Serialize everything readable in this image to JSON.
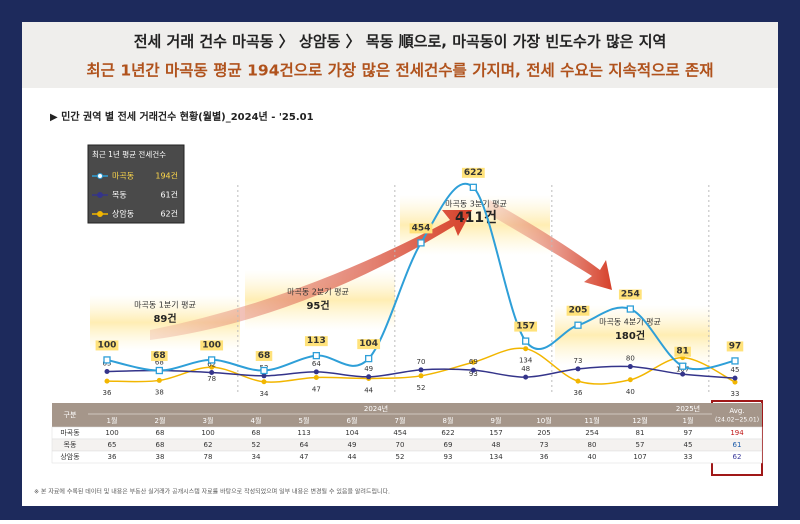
{
  "header": {
    "title": "전세 거래 건수 마곡동 〉 상암동 〉 목동 順으로, 마곡동이 가장 빈도수가 많은 지역",
    "subtitle": "최근 1년간 마곡동 평균 194건으로 가장 많은 전세건수를 가지며, 전세 수요는 지속적으로 존재"
  },
  "chart_data": {
    "type": "line",
    "title": "▶ 민간 권역 별 전세 거래건수 현황(월별)_2024년 - '25.01",
    "legend_title": "최근 1년 평균 전세건수",
    "years": [
      "2024년",
      "2025년"
    ],
    "categories": [
      "1월",
      "2월",
      "3월",
      "4월",
      "5월",
      "6월",
      "7월",
      "8월",
      "9월",
      "10월",
      "11월",
      "12월",
      "1월"
    ],
    "ylim": [
      0,
      750
    ],
    "series": [
      {
        "name": "마곡동",
        "color": "#2e9fd8",
        "values": [
          100,
          68,
          100,
          68,
          113,
          104,
          454,
          622,
          157,
          205,
          254,
          81,
          97
        ],
        "avg": 194,
        "avg_label": "194건"
      },
      {
        "name": "목동",
        "color": "#34348a",
        "values": [
          65,
          68,
          62,
          52,
          64,
          49,
          70,
          69,
          48,
          73,
          80,
          57,
          45
        ],
        "avg": 61,
        "avg_label": "61건"
      },
      {
        "name": "상암동",
        "color": "#f2b600",
        "values": [
          36,
          38,
          78,
          34,
          47,
          44,
          52,
          93,
          134,
          36,
          40,
          107,
          33
        ],
        "avg": 62,
        "avg_label": "62건"
      }
    ],
    "annotations": [
      {
        "text": "마곡동 1분기 평균",
        "value_label": "89건"
      },
      {
        "text": "마곡동 2분기 평균",
        "value_label": "95건"
      },
      {
        "text": "마곡동 3분기 평균",
        "value_label": "411건"
      },
      {
        "text": "마곡동 4분기 평균",
        "value_label": "180건"
      }
    ],
    "table": {
      "corner": "구분",
      "avg_header": "Avg.",
      "avg_period": "(24.02~25.01)"
    },
    "footnote": "※ 본 자료에 수록된 데이터 및 내용은 부동산 실거래가 공개시스템 자료를 바탕으로 작성되었으며 일부 내용은 변경될 수 있음을 알려드립니다."
  }
}
